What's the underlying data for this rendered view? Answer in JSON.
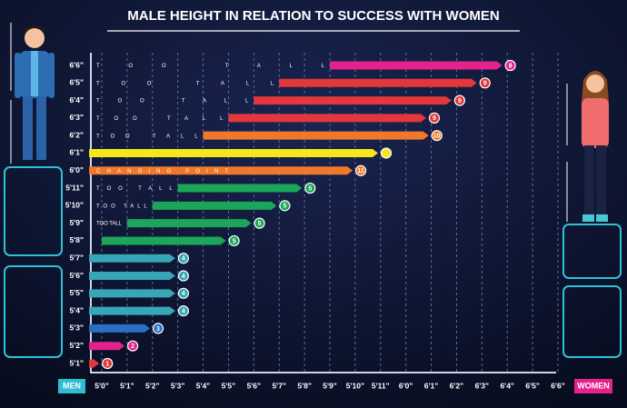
{
  "chart_data": {
    "type": "range-bar",
    "title": "MALE HEIGHT IN RELATION TO SUCCESS WITH WOMEN",
    "left_label": "MEN",
    "right_label": "WOMEN",
    "categories": [
      "6'6\"",
      "6'5\"",
      "6'4\"",
      "6'3\"",
      "6'2\"",
      "6'1\"",
      "6'0\"",
      "5'11\"",
      "5'10\"",
      "5'9\"",
      "5'8\"",
      "5'7\"",
      "5'6\"",
      "5'5\"",
      "5'4\"",
      "5'3\"",
      "5'2\"",
      "5'1\""
    ],
    "starts": [
      69,
      67,
      66,
      65,
      64,
      null,
      null,
      63,
      62,
      61,
      60,
      null,
      null,
      null,
      null,
      null,
      null,
      null
    ],
    "values": [
      75.8,
      74.8,
      73.8,
      72.8,
      72.9,
      70.9,
      69.9,
      67.9,
      66.9,
      65.9,
      64.9,
      62.9,
      62.9,
      62.9,
      62.9,
      61.9,
      60.9,
      59.9
    ],
    "badges": [
      8,
      9,
      9,
      9,
      10,
      null,
      11,
      5,
      5,
      5,
      5,
      4,
      4,
      4,
      4,
      3,
      2,
      1
    ],
    "bar_texts": [
      "TOO TALL",
      "TOO TALL",
      "TOO TALL",
      "TOO TALL",
      "TOO TALL",
      null,
      "CHANGING POINT",
      "TOO TALL",
      "TOO TALL",
      "TOO TALL",
      null,
      null,
      null,
      null,
      null,
      null,
      null,
      null
    ],
    "colors": [
      "#e4228e",
      "#e2383c",
      "#e2383c",
      "#e2383c",
      "#f0782a",
      "#f6e61c",
      "#f0782a",
      "#1ba65a",
      "#1ba65a",
      "#1ba65a",
      "#1ba65a",
      "#37a6b6",
      "#37a6b6",
      "#37a6b6",
      "#37a6b6",
      "#2a6fc2",
      "#e4228e",
      "#e2383c"
    ],
    "xlim": [
      59.5,
      78
    ],
    "xticks": [
      {
        "value": 60,
        "label": "5'0\""
      },
      {
        "value": 61,
        "label": "5'1\""
      },
      {
        "value": 62,
        "label": "5'2\""
      },
      {
        "value": 63,
        "label": "5'3\""
      },
      {
        "value": 64,
        "label": "5'4\""
      },
      {
        "value": 65,
        "label": "5'5\""
      },
      {
        "value": 66,
        "label": "5'6\""
      },
      {
        "value": 67,
        "label": "5'7\""
      },
      {
        "value": 68,
        "label": "5'8\""
      },
      {
        "value": 69,
        "label": "5'9\""
      },
      {
        "value": 70,
        "label": "5'10\""
      },
      {
        "value": 71,
        "label": "5'11\""
      },
      {
        "value": 72,
        "label": "6'0\""
      },
      {
        "value": 73,
        "label": "6'1\""
      },
      {
        "value": 74,
        "label": "6'2\""
      },
      {
        "value": 75,
        "label": "6'3\""
      },
      {
        "value": 76,
        "label": "6'4\""
      },
      {
        "value": 77,
        "label": "6'5\""
      },
      {
        "value": 78,
        "label": "6'6\""
      }
    ],
    "grid": true
  }
}
